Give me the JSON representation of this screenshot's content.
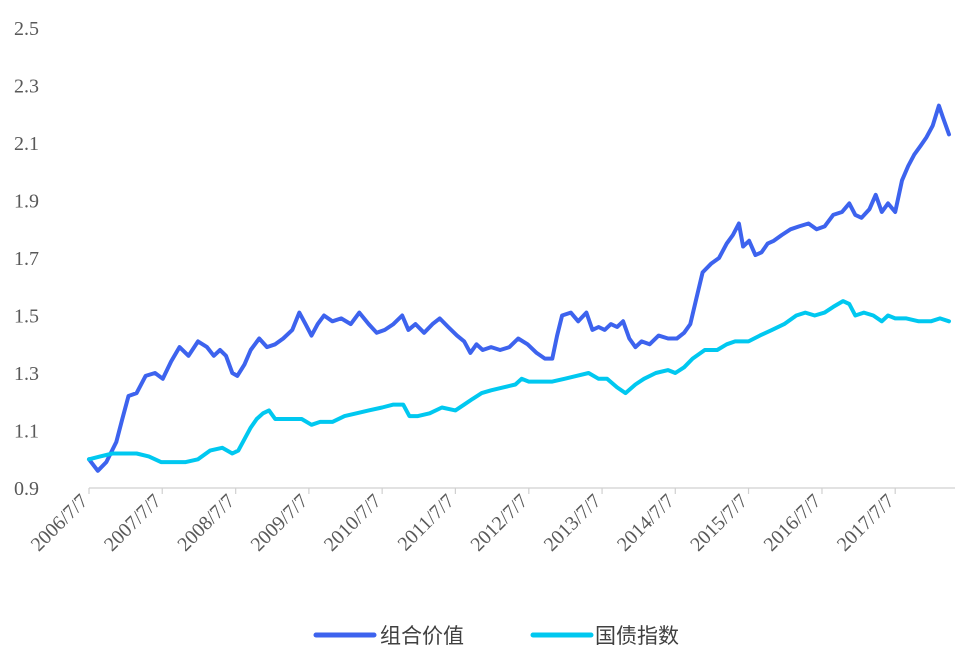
{
  "chart_data": {
    "type": "line",
    "title": "",
    "xlabel": "",
    "ylabel": "",
    "ylim": [
      0.9,
      2.5
    ],
    "yticks": [
      "0.9",
      "1.1",
      "1.3",
      "1.5",
      "1.7",
      "1.9",
      "2.1",
      "2.3",
      "2.5"
    ],
    "xlim": [
      "2006-07-07",
      "2018-05-01"
    ],
    "xticks": [
      "2006/7/7",
      "2007/7/7",
      "2008/7/7",
      "2009/7/7",
      "2010/7/7",
      "2011/7/7",
      "2012/7/7",
      "2013/7/7",
      "2014/7/7",
      "2015/7/7",
      "2016/7/7",
      "2017/7/7"
    ],
    "grid": false,
    "legend_position": "bottom",
    "series": [
      {
        "name": "组合价值",
        "color": "#3D63EE",
        "points": [
          [
            "2006-07-07",
            1.0
          ],
          [
            "2006-08-20",
            0.96
          ],
          [
            "2006-10-01",
            0.99
          ],
          [
            "2006-11-20",
            1.06
          ],
          [
            "2006-12-20",
            1.14
          ],
          [
            "2007-01-20",
            1.22
          ],
          [
            "2007-03-01",
            1.23
          ],
          [
            "2007-04-15",
            1.29
          ],
          [
            "2007-06-01",
            1.3
          ],
          [
            "2007-07-10",
            1.28
          ],
          [
            "2007-08-20",
            1.34
          ],
          [
            "2007-10-01",
            1.39
          ],
          [
            "2007-11-15",
            1.36
          ],
          [
            "2008-01-01",
            1.41
          ],
          [
            "2008-02-15",
            1.39
          ],
          [
            "2008-03-20",
            1.36
          ],
          [
            "2008-04-20",
            1.38
          ],
          [
            "2008-05-20",
            1.36
          ],
          [
            "2008-06-20",
            1.3
          ],
          [
            "2008-07-15",
            1.29
          ],
          [
            "2008-08-20",
            1.33
          ],
          [
            "2008-09-20",
            1.38
          ],
          [
            "2008-11-01",
            1.42
          ],
          [
            "2008-12-10",
            1.39
          ],
          [
            "2009-01-20",
            1.4
          ],
          [
            "2009-03-01",
            1.42
          ],
          [
            "2009-04-15",
            1.45
          ],
          [
            "2009-05-20",
            1.51
          ],
          [
            "2009-06-20",
            1.47
          ],
          [
            "2009-07-20",
            1.43
          ],
          [
            "2009-08-20",
            1.47
          ],
          [
            "2009-09-20",
            1.5
          ],
          [
            "2009-11-01",
            1.48
          ],
          [
            "2009-12-15",
            1.49
          ],
          [
            "2010-02-01",
            1.47
          ],
          [
            "2010-03-15",
            1.51
          ],
          [
            "2010-05-01",
            1.47
          ],
          [
            "2010-06-10",
            1.44
          ],
          [
            "2010-07-20",
            1.45
          ],
          [
            "2010-09-01",
            1.47
          ],
          [
            "2010-10-15",
            1.5
          ],
          [
            "2010-11-15",
            1.45
          ],
          [
            "2010-12-20",
            1.47
          ],
          [
            "2011-02-01",
            1.44
          ],
          [
            "2011-03-15",
            1.47
          ],
          [
            "2011-04-20",
            1.49
          ],
          [
            "2011-06-01",
            1.46
          ],
          [
            "2011-07-15",
            1.43
          ],
          [
            "2011-08-20",
            1.41
          ],
          [
            "2011-09-20",
            1.37
          ],
          [
            "2011-10-20",
            1.4
          ],
          [
            "2011-11-20",
            1.38
          ],
          [
            "2012-01-01",
            1.39
          ],
          [
            "2012-02-15",
            1.38
          ],
          [
            "2012-04-01",
            1.39
          ],
          [
            "2012-05-15",
            1.42
          ],
          [
            "2012-07-01",
            1.4
          ],
          [
            "2012-08-15",
            1.37
          ],
          [
            "2012-09-25",
            1.35
          ],
          [
            "2012-11-01",
            1.35
          ],
          [
            "2012-11-25",
            1.43
          ],
          [
            "2012-12-20",
            1.5
          ],
          [
            "2013-02-01",
            1.51
          ],
          [
            "2013-03-10",
            1.48
          ],
          [
            "2013-04-20",
            1.51
          ],
          [
            "2013-05-20",
            1.45
          ],
          [
            "2013-06-20",
            1.46
          ],
          [
            "2013-07-20",
            1.45
          ],
          [
            "2013-08-20",
            1.47
          ],
          [
            "2013-09-20",
            1.46
          ],
          [
            "2013-10-20",
            1.48
          ],
          [
            "2013-11-20",
            1.42
          ],
          [
            "2013-12-20",
            1.39
          ],
          [
            "2014-01-20",
            1.41
          ],
          [
            "2014-03-01",
            1.4
          ],
          [
            "2014-04-15",
            1.43
          ],
          [
            "2014-06-01",
            1.42
          ],
          [
            "2014-07-15",
            1.42
          ],
          [
            "2014-08-20",
            1.44
          ],
          [
            "2014-09-20",
            1.47
          ],
          [
            "2014-10-20",
            1.56
          ],
          [
            "2014-11-20",
            1.65
          ],
          [
            "2015-01-01",
            1.68
          ],
          [
            "2015-02-10",
            1.7
          ],
          [
            "2015-03-20",
            1.75
          ],
          [
            "2015-04-20",
            1.78
          ],
          [
            "2015-05-20",
            1.82
          ],
          [
            "2015-06-10",
            1.74
          ],
          [
            "2015-07-10",
            1.76
          ],
          [
            "2015-08-10",
            1.71
          ],
          [
            "2015-09-10",
            1.72
          ],
          [
            "2015-10-10",
            1.75
          ],
          [
            "2015-11-10",
            1.76
          ],
          [
            "2015-12-20",
            1.78
          ],
          [
            "2016-02-01",
            1.8
          ],
          [
            "2016-03-15",
            1.81
          ],
          [
            "2016-05-01",
            1.82
          ],
          [
            "2016-06-10",
            1.8
          ],
          [
            "2016-07-20",
            1.81
          ],
          [
            "2016-09-01",
            1.85
          ],
          [
            "2016-10-15",
            1.86
          ],
          [
            "2016-11-20",
            1.89
          ],
          [
            "2016-12-20",
            1.85
          ],
          [
            "2017-01-20",
            1.84
          ],
          [
            "2017-03-01",
            1.87
          ],
          [
            "2017-04-01",
            1.92
          ],
          [
            "2017-05-01",
            1.86
          ],
          [
            "2017-06-01",
            1.89
          ],
          [
            "2017-07-07",
            1.86
          ],
          [
            "2017-08-10",
            1.97
          ],
          [
            "2017-09-10",
            2.02
          ],
          [
            "2017-10-10",
            2.06
          ],
          [
            "2017-11-10",
            2.09
          ],
          [
            "2017-12-10",
            2.12
          ],
          [
            "2018-01-10",
            2.16
          ],
          [
            "2018-02-10",
            2.23
          ],
          [
            "2018-03-01",
            2.19
          ],
          [
            "2018-04-01",
            2.13
          ]
        ]
      },
      {
        "name": "国债指数",
        "color": "#00C8F0",
        "points": [
          [
            "2006-07-07",
            1.0
          ],
          [
            "2006-09-01",
            1.01
          ],
          [
            "2006-11-01",
            1.02
          ],
          [
            "2007-01-01",
            1.02
          ],
          [
            "2007-03-01",
            1.02
          ],
          [
            "2007-05-01",
            1.01
          ],
          [
            "2007-07-01",
            0.99
          ],
          [
            "2007-09-01",
            0.99
          ],
          [
            "2007-11-01",
            0.99
          ],
          [
            "2008-01-01",
            1.0
          ],
          [
            "2008-03-01",
            1.03
          ],
          [
            "2008-05-01",
            1.04
          ],
          [
            "2008-06-20",
            1.02
          ],
          [
            "2008-07-20",
            1.03
          ],
          [
            "2008-08-20",
            1.07
          ],
          [
            "2008-09-20",
            1.11
          ],
          [
            "2008-10-20",
            1.14
          ],
          [
            "2008-11-20",
            1.16
          ],
          [
            "2008-12-20",
            1.17
          ],
          [
            "2009-01-20",
            1.14
          ],
          [
            "2009-04-01",
            1.14
          ],
          [
            "2009-06-01",
            1.14
          ],
          [
            "2009-07-20",
            1.12
          ],
          [
            "2009-09-01",
            1.13
          ],
          [
            "2009-11-01",
            1.13
          ],
          [
            "2010-01-01",
            1.15
          ],
          [
            "2010-03-01",
            1.16
          ],
          [
            "2010-05-01",
            1.17
          ],
          [
            "2010-07-07",
            1.18
          ],
          [
            "2010-09-01",
            1.19
          ],
          [
            "2010-10-20",
            1.19
          ],
          [
            "2010-11-20",
            1.15
          ],
          [
            "2011-01-01",
            1.15
          ],
          [
            "2011-03-01",
            1.16
          ],
          [
            "2011-05-01",
            1.18
          ],
          [
            "2011-07-07",
            1.17
          ],
          [
            "2011-08-20",
            1.19
          ],
          [
            "2011-10-01",
            1.21
          ],
          [
            "2011-11-15",
            1.23
          ],
          [
            "2012-01-01",
            1.24
          ],
          [
            "2012-03-01",
            1.25
          ],
          [
            "2012-05-01",
            1.26
          ],
          [
            "2012-06-01",
            1.28
          ],
          [
            "2012-07-07",
            1.27
          ],
          [
            "2012-09-01",
            1.27
          ],
          [
            "2012-11-01",
            1.27
          ],
          [
            "2013-01-01",
            1.28
          ],
          [
            "2013-03-01",
            1.29
          ],
          [
            "2013-05-01",
            1.3
          ],
          [
            "2013-06-20",
            1.28
          ],
          [
            "2013-08-01",
            1.28
          ],
          [
            "2013-09-20",
            1.25
          ],
          [
            "2013-11-01",
            1.23
          ],
          [
            "2013-12-20",
            1.26
          ],
          [
            "2014-02-01",
            1.28
          ],
          [
            "2014-04-01",
            1.3
          ],
          [
            "2014-06-01",
            1.31
          ],
          [
            "2014-07-07",
            1.3
          ],
          [
            "2014-08-20",
            1.32
          ],
          [
            "2014-10-01",
            1.35
          ],
          [
            "2014-12-01",
            1.38
          ],
          [
            "2015-02-01",
            1.38
          ],
          [
            "2015-03-20",
            1.4
          ],
          [
            "2015-05-01",
            1.41
          ],
          [
            "2015-07-07",
            1.41
          ],
          [
            "2015-09-01",
            1.43
          ],
          [
            "2015-11-01",
            1.45
          ],
          [
            "2016-01-01",
            1.47
          ],
          [
            "2016-03-01",
            1.5
          ],
          [
            "2016-04-15",
            1.51
          ],
          [
            "2016-06-01",
            1.5
          ],
          [
            "2016-07-20",
            1.51
          ],
          [
            "2016-09-01",
            1.53
          ],
          [
            "2016-10-20",
            1.55
          ],
          [
            "2016-11-20",
            1.54
          ],
          [
            "2016-12-20",
            1.5
          ],
          [
            "2017-02-01",
            1.51
          ],
          [
            "2017-03-20",
            1.5
          ],
          [
            "2017-05-01",
            1.48
          ],
          [
            "2017-06-01",
            1.5
          ],
          [
            "2017-07-07",
            1.49
          ],
          [
            "2017-09-01",
            1.49
          ],
          [
            "2017-11-01",
            1.48
          ],
          [
            "2018-01-01",
            1.48
          ],
          [
            "2018-02-15",
            1.49
          ],
          [
            "2018-04-01",
            1.48
          ]
        ]
      }
    ]
  }
}
